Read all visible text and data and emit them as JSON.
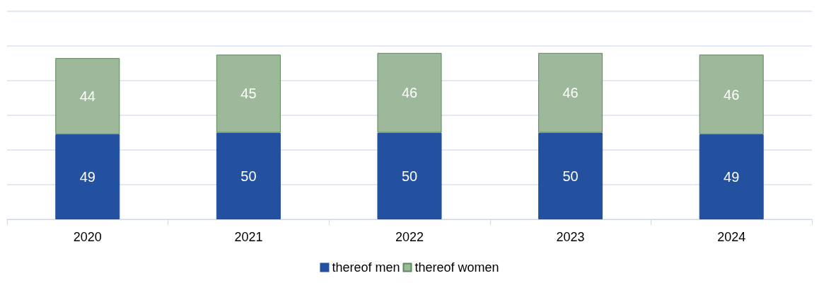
{
  "chart_data": {
    "type": "bar",
    "stacked": true,
    "categories": [
      "2020",
      "2021",
      "2022",
      "2023",
      "2024"
    ],
    "series": [
      {
        "name": "thereof men",
        "color": "#23519f",
        "values": [
          49,
          50,
          50,
          50,
          49
        ]
      },
      {
        "name": "thereof women",
        "color": "#9db89a",
        "values": [
          44,
          45,
          46,
          46,
          46
        ]
      }
    ],
    "ylim": [
      0,
      120
    ],
    "tick_labels": "x",
    "grid": "y",
    "legend": "bottom",
    "data_labels": true
  }
}
